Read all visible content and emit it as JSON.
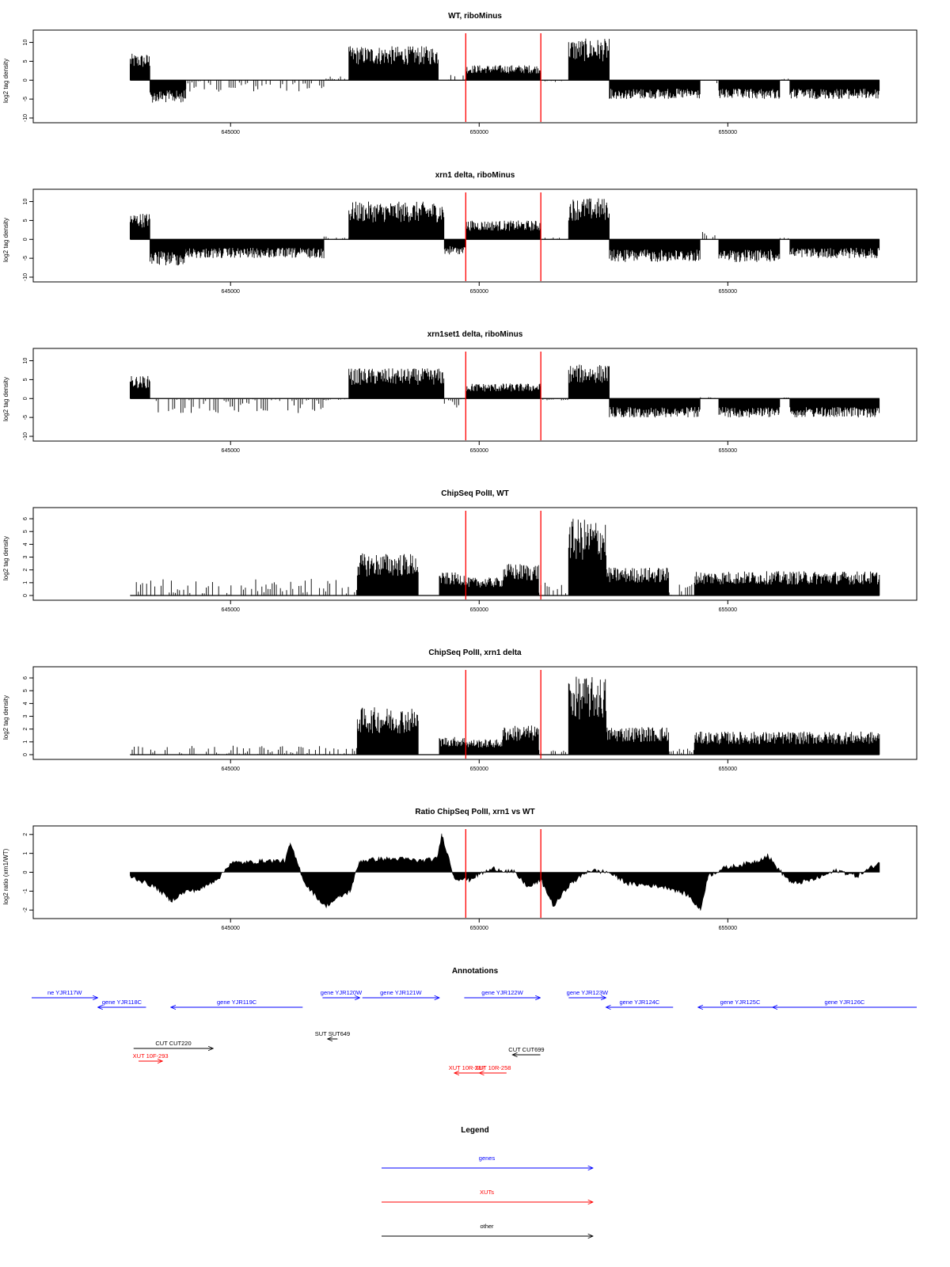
{
  "colors": {
    "track": "#000000",
    "marker": "#ff0000",
    "gene": "#0000ff",
    "xut": "#ff0000",
    "other": "#000000"
  },
  "chart_data": [
    {
      "type": "area",
      "title": "WT, riboMinus",
      "ylabel": "log2 tag density",
      "xlim": [
        641000,
        658800
      ],
      "ylim": [
        -10,
        12
      ],
      "yticks": [
        -10,
        -5,
        0,
        5,
        10
      ],
      "xticks": [
        645000,
        650000,
        655000
      ],
      "xtick_labels": [
        "645000",
        "650000",
        "655000"
      ],
      "markers": [
        649730,
        651240
      ],
      "regions": [
        {
          "x0": 642980,
          "x1": 643380,
          "y": 7
        },
        {
          "x0": 643380,
          "x1": 644100,
          "y": -6
        },
        {
          "x0": 644100,
          "x1": 646880,
          "y": -3,
          "sparse": true
        },
        {
          "x0": 646880,
          "x1": 647380,
          "y": 1,
          "sparse": true
        },
        {
          "x0": 647380,
          "x1": 649180,
          "y": 9
        },
        {
          "x0": 649180,
          "x1": 649730,
          "y": 1.5,
          "sparse": true
        },
        {
          "x0": 649730,
          "x1": 650980,
          "y": 4
        },
        {
          "x0": 650980,
          "x1": 651240,
          "y": 4
        },
        {
          "x0": 651240,
          "x1": 651800,
          "y": -0.5,
          "sparse": true
        },
        {
          "x0": 651800,
          "x1": 652620,
          "y": 11
        },
        {
          "x0": 652620,
          "x1": 654450,
          "y": -5
        },
        {
          "x0": 654450,
          "x1": 654820,
          "y": -1,
          "sparse": true
        },
        {
          "x0": 654820,
          "x1": 656050,
          "y": -5
        },
        {
          "x0": 656050,
          "x1": 656250,
          "y": 0.5,
          "sparse": true
        },
        {
          "x0": 656250,
          "x1": 658050,
          "y": -5
        }
      ]
    },
    {
      "type": "area",
      "title": "xrn1 delta, riboMinus",
      "ylabel": "log2 tag density",
      "xlim": [
        641000,
        658800
      ],
      "ylim": [
        -10,
        12
      ],
      "yticks": [
        -10,
        -5,
        0,
        5,
        10
      ],
      "xticks": [
        645000,
        650000,
        655000
      ],
      "xtick_labels": [
        "645000",
        "650000",
        "655000"
      ],
      "markers": [
        649730,
        651240
      ],
      "regions": [
        {
          "x0": 642980,
          "x1": 643380,
          "y": 7
        },
        {
          "x0": 643380,
          "x1": 644100,
          "y": -7
        },
        {
          "x0": 644100,
          "x1": 646880,
          "y": -5
        },
        {
          "x0": 646880,
          "x1": 647380,
          "y": 1,
          "sparse": true
        },
        {
          "x0": 647380,
          "x1": 649300,
          "y": 10
        },
        {
          "x0": 649300,
          "x1": 649730,
          "y": -4
        },
        {
          "x0": 649730,
          "x1": 651240,
          "y": 5
        },
        {
          "x0": 651240,
          "x1": 651800,
          "y": 0.5,
          "sparse": true
        },
        {
          "x0": 651800,
          "x1": 652620,
          "y": 11
        },
        {
          "x0": 652620,
          "x1": 654450,
          "y": -6
        },
        {
          "x0": 654450,
          "x1": 654820,
          "y": 2,
          "sparse": true
        },
        {
          "x0": 654820,
          "x1": 656050,
          "y": -6
        },
        {
          "x0": 656050,
          "x1": 656250,
          "y": 0.5,
          "sparse": true
        },
        {
          "x0": 656250,
          "x1": 658050,
          "y": -5
        }
      ]
    },
    {
      "type": "area",
      "title": "xrn1set1 delta, riboMinus",
      "ylabel": "log2 tag density",
      "xlim": [
        641000,
        658800
      ],
      "ylim": [
        -10,
        12
      ],
      "yticks": [
        -10,
        -5,
        0,
        5,
        10
      ],
      "xticks": [
        645000,
        650000,
        655000
      ],
      "xtick_labels": [
        "645000",
        "650000",
        "655000"
      ],
      "markers": [
        649730,
        651240
      ],
      "regions": [
        {
          "x0": 642980,
          "x1": 643380,
          "y": 6
        },
        {
          "x0": 643380,
          "x1": 646880,
          "y": -4,
          "sparse": true
        },
        {
          "x0": 646880,
          "x1": 647380,
          "y": -0.5,
          "sparse": true
        },
        {
          "x0": 647380,
          "x1": 649300,
          "y": 8
        },
        {
          "x0": 649300,
          "x1": 649730,
          "y": -3,
          "sparse": true
        },
        {
          "x0": 649730,
          "x1": 651240,
          "y": 4
        },
        {
          "x0": 651240,
          "x1": 651800,
          "y": -0.5,
          "sparse": true
        },
        {
          "x0": 651800,
          "x1": 652620,
          "y": 9
        },
        {
          "x0": 652620,
          "x1": 654450,
          "y": -5
        },
        {
          "x0": 654450,
          "x1": 654820,
          "y": 0.5,
          "sparse": true
        },
        {
          "x0": 654820,
          "x1": 656050,
          "y": -5
        },
        {
          "x0": 656050,
          "x1": 656250,
          "y": 0.5,
          "sparse": true
        },
        {
          "x0": 656250,
          "x1": 658050,
          "y": -5
        }
      ]
    },
    {
      "type": "bar",
      "title": "ChipSeq PolII, WT",
      "ylabel": "log2 tag density",
      "xlim": [
        641000,
        658800
      ],
      "ylim": [
        0,
        6.5
      ],
      "yticks": [
        0,
        1,
        2,
        3,
        4,
        5,
        6
      ],
      "xticks": [
        645000,
        650000,
        655000
      ],
      "xtick_labels": [
        "645000",
        "650000",
        "655000"
      ],
      "markers": [
        649730,
        651240
      ],
      "regions": [
        {
          "x0": 642980,
          "x1": 647550,
          "y": 1.3,
          "sparse": true
        },
        {
          "x0": 647550,
          "x1": 648780,
          "y": 3.3
        },
        {
          "x0": 648780,
          "x1": 649200,
          "y": 0,
          "sparse": true
        },
        {
          "x0": 649200,
          "x1": 649730,
          "y": 1.8
        },
        {
          "x0": 649730,
          "x1": 650480,
          "y": 1.4
        },
        {
          "x0": 650480,
          "x1": 651200,
          "y": 2.5
        },
        {
          "x0": 651200,
          "x1": 651800,
          "y": 1.0,
          "sparse": true
        },
        {
          "x0": 651800,
          "x1": 652560,
          "y": 6.0
        },
        {
          "x0": 652560,
          "x1": 653820,
          "y": 2.2
        },
        {
          "x0": 653820,
          "x1": 654330,
          "y": 1.0,
          "sparse": true
        },
        {
          "x0": 654330,
          "x1": 658050,
          "y": 1.9
        }
      ]
    },
    {
      "type": "bar",
      "title": "ChipSeq PolII, xrn1 delta",
      "ylabel": "log2 tag density",
      "xlim": [
        641000,
        658800
      ],
      "ylim": [
        0,
        6.5
      ],
      "yticks": [
        0,
        1,
        2,
        3,
        4,
        5,
        6
      ],
      "xticks": [
        645000,
        650000,
        655000
      ],
      "xtick_labels": [
        "645000",
        "650000",
        "655000"
      ],
      "markers": [
        649730,
        651240
      ],
      "regions": [
        {
          "x0": 642980,
          "x1": 647550,
          "y": 0.7,
          "sparse": true
        },
        {
          "x0": 647550,
          "x1": 648780,
          "y": 3.7
        },
        {
          "x0": 648780,
          "x1": 649200,
          "y": 0,
          "sparse": true
        },
        {
          "x0": 649200,
          "x1": 649730,
          "y": 1.4
        },
        {
          "x0": 649730,
          "x1": 650480,
          "y": 1.2
        },
        {
          "x0": 650480,
          "x1": 651200,
          "y": 2.3
        },
        {
          "x0": 651200,
          "x1": 651800,
          "y": 0.5,
          "sparse": true
        },
        {
          "x0": 651800,
          "x1": 652560,
          "y": 6.1
        },
        {
          "x0": 652560,
          "x1": 653820,
          "y": 2.2
        },
        {
          "x0": 653820,
          "x1": 654330,
          "y": 0.5,
          "sparse": true
        },
        {
          "x0": 654330,
          "x1": 658050,
          "y": 1.8
        }
      ]
    },
    {
      "type": "area",
      "title": "Ratio ChipSeq PolII, xrn1 vs WT",
      "ylabel": "log2 ratio (xrn1/WT)",
      "xlim": [
        641000,
        658800
      ],
      "ylim": [
        -2.2,
        2.2
      ],
      "yticks": [
        -2,
        -1,
        0,
        1,
        2
      ],
      "xticks": [
        645000,
        650000,
        655000
      ],
      "xtick_labels": [
        "645000",
        "650000",
        "655000"
      ],
      "markers": [
        649730,
        651240
      ],
      "x": [
        642980,
        643500,
        643800,
        644100,
        644400,
        644800,
        645000,
        645300,
        645700,
        646100,
        646200,
        646500,
        646900,
        647200,
        647400,
        647600,
        648000,
        648500,
        648800,
        649150,
        649250,
        649500,
        649800,
        650000,
        650300,
        650700,
        651000,
        651240,
        651500,
        651800,
        652200,
        652600,
        653000,
        653500,
        653800,
        654200,
        654450,
        654600,
        654900,
        655300,
        655600,
        655800,
        656000,
        656300,
        656700,
        657200,
        657600,
        658050
      ],
      "y": [
        -0.2,
        -0.8,
        -1.5,
        -1.0,
        -0.9,
        -0.2,
        0.5,
        0.5,
        0.6,
        0.6,
        1.5,
        -0.6,
        -1.8,
        -1.3,
        -1.0,
        0.6,
        0.7,
        0.7,
        0.6,
        0.7,
        2.0,
        -0.3,
        -0.4,
        -0.1,
        0.2,
        0.0,
        -0.8,
        -0.4,
        -1.8,
        -0.7,
        0.1,
        0.0,
        -0.6,
        -0.7,
        -0.8,
        -1.2,
        -2.0,
        -0.2,
        0.2,
        0.4,
        0.6,
        0.9,
        0.2,
        -0.6,
        -0.4,
        0.1,
        -0.2,
        0.5
      ]
    }
  ],
  "annotations": {
    "title": "Annotations",
    "genes": [
      {
        "label": "ne YJR117W",
        "x0": 641000,
        "x1": 642330,
        "dir": "right"
      },
      {
        "label": "gene YJR118C",
        "x0": 642330,
        "x1": 643300,
        "dir": "left"
      },
      {
        "label": "gene YJR119C",
        "x0": 643800,
        "x1": 646450,
        "dir": "left"
      },
      {
        "label": "gene YJR120W",
        "x0": 646850,
        "x1": 647600,
        "dir": "right"
      },
      {
        "label": "gene YJR121W",
        "x0": 647650,
        "x1": 649200,
        "dir": "right"
      },
      {
        "label": "gene YJR122W",
        "x0": 649700,
        "x1": 651230,
        "dir": "right"
      },
      {
        "label": "gene YJR123W",
        "x0": 651800,
        "x1": 652550,
        "dir": "right"
      },
      {
        "label": "gene YJR124C",
        "x0": 652550,
        "x1": 653900,
        "dir": "left"
      },
      {
        "label": "gene YJR125C",
        "x0": 654400,
        "x1": 656100,
        "dir": "left"
      },
      {
        "label": "gene YJR126C",
        "x0": 655900,
        "x1": 658800,
        "dir": "left"
      }
    ],
    "others": [
      {
        "label": "CUT CUT220",
        "x0": 643050,
        "x1": 644650,
        "dir": "right"
      },
      {
        "label": "SUT SUT649",
        "x0": 646950,
        "x1": 647150,
        "dir": "left"
      },
      {
        "label": "CUT CUT699",
        "x0": 650670,
        "x1": 651230,
        "dir": "left"
      }
    ],
    "xuts": [
      {
        "label": "XUT 10F-293",
        "x0": 643150,
        "x1": 643630,
        "dir": "right"
      },
      {
        "label": "XUT 10R-287",
        "x0": 649500,
        "x1": 650000,
        "dir": "left"
      },
      {
        "label": "XUT 10R-258",
        "x0": 650000,
        "x1": 650550,
        "dir": "left"
      }
    ]
  },
  "legend": {
    "title": "Legend",
    "items": [
      {
        "label": "genes",
        "color": "#0000ff"
      },
      {
        "label": "XUTs",
        "color": "#ff0000"
      },
      {
        "label": "other",
        "color": "#000000"
      }
    ]
  }
}
